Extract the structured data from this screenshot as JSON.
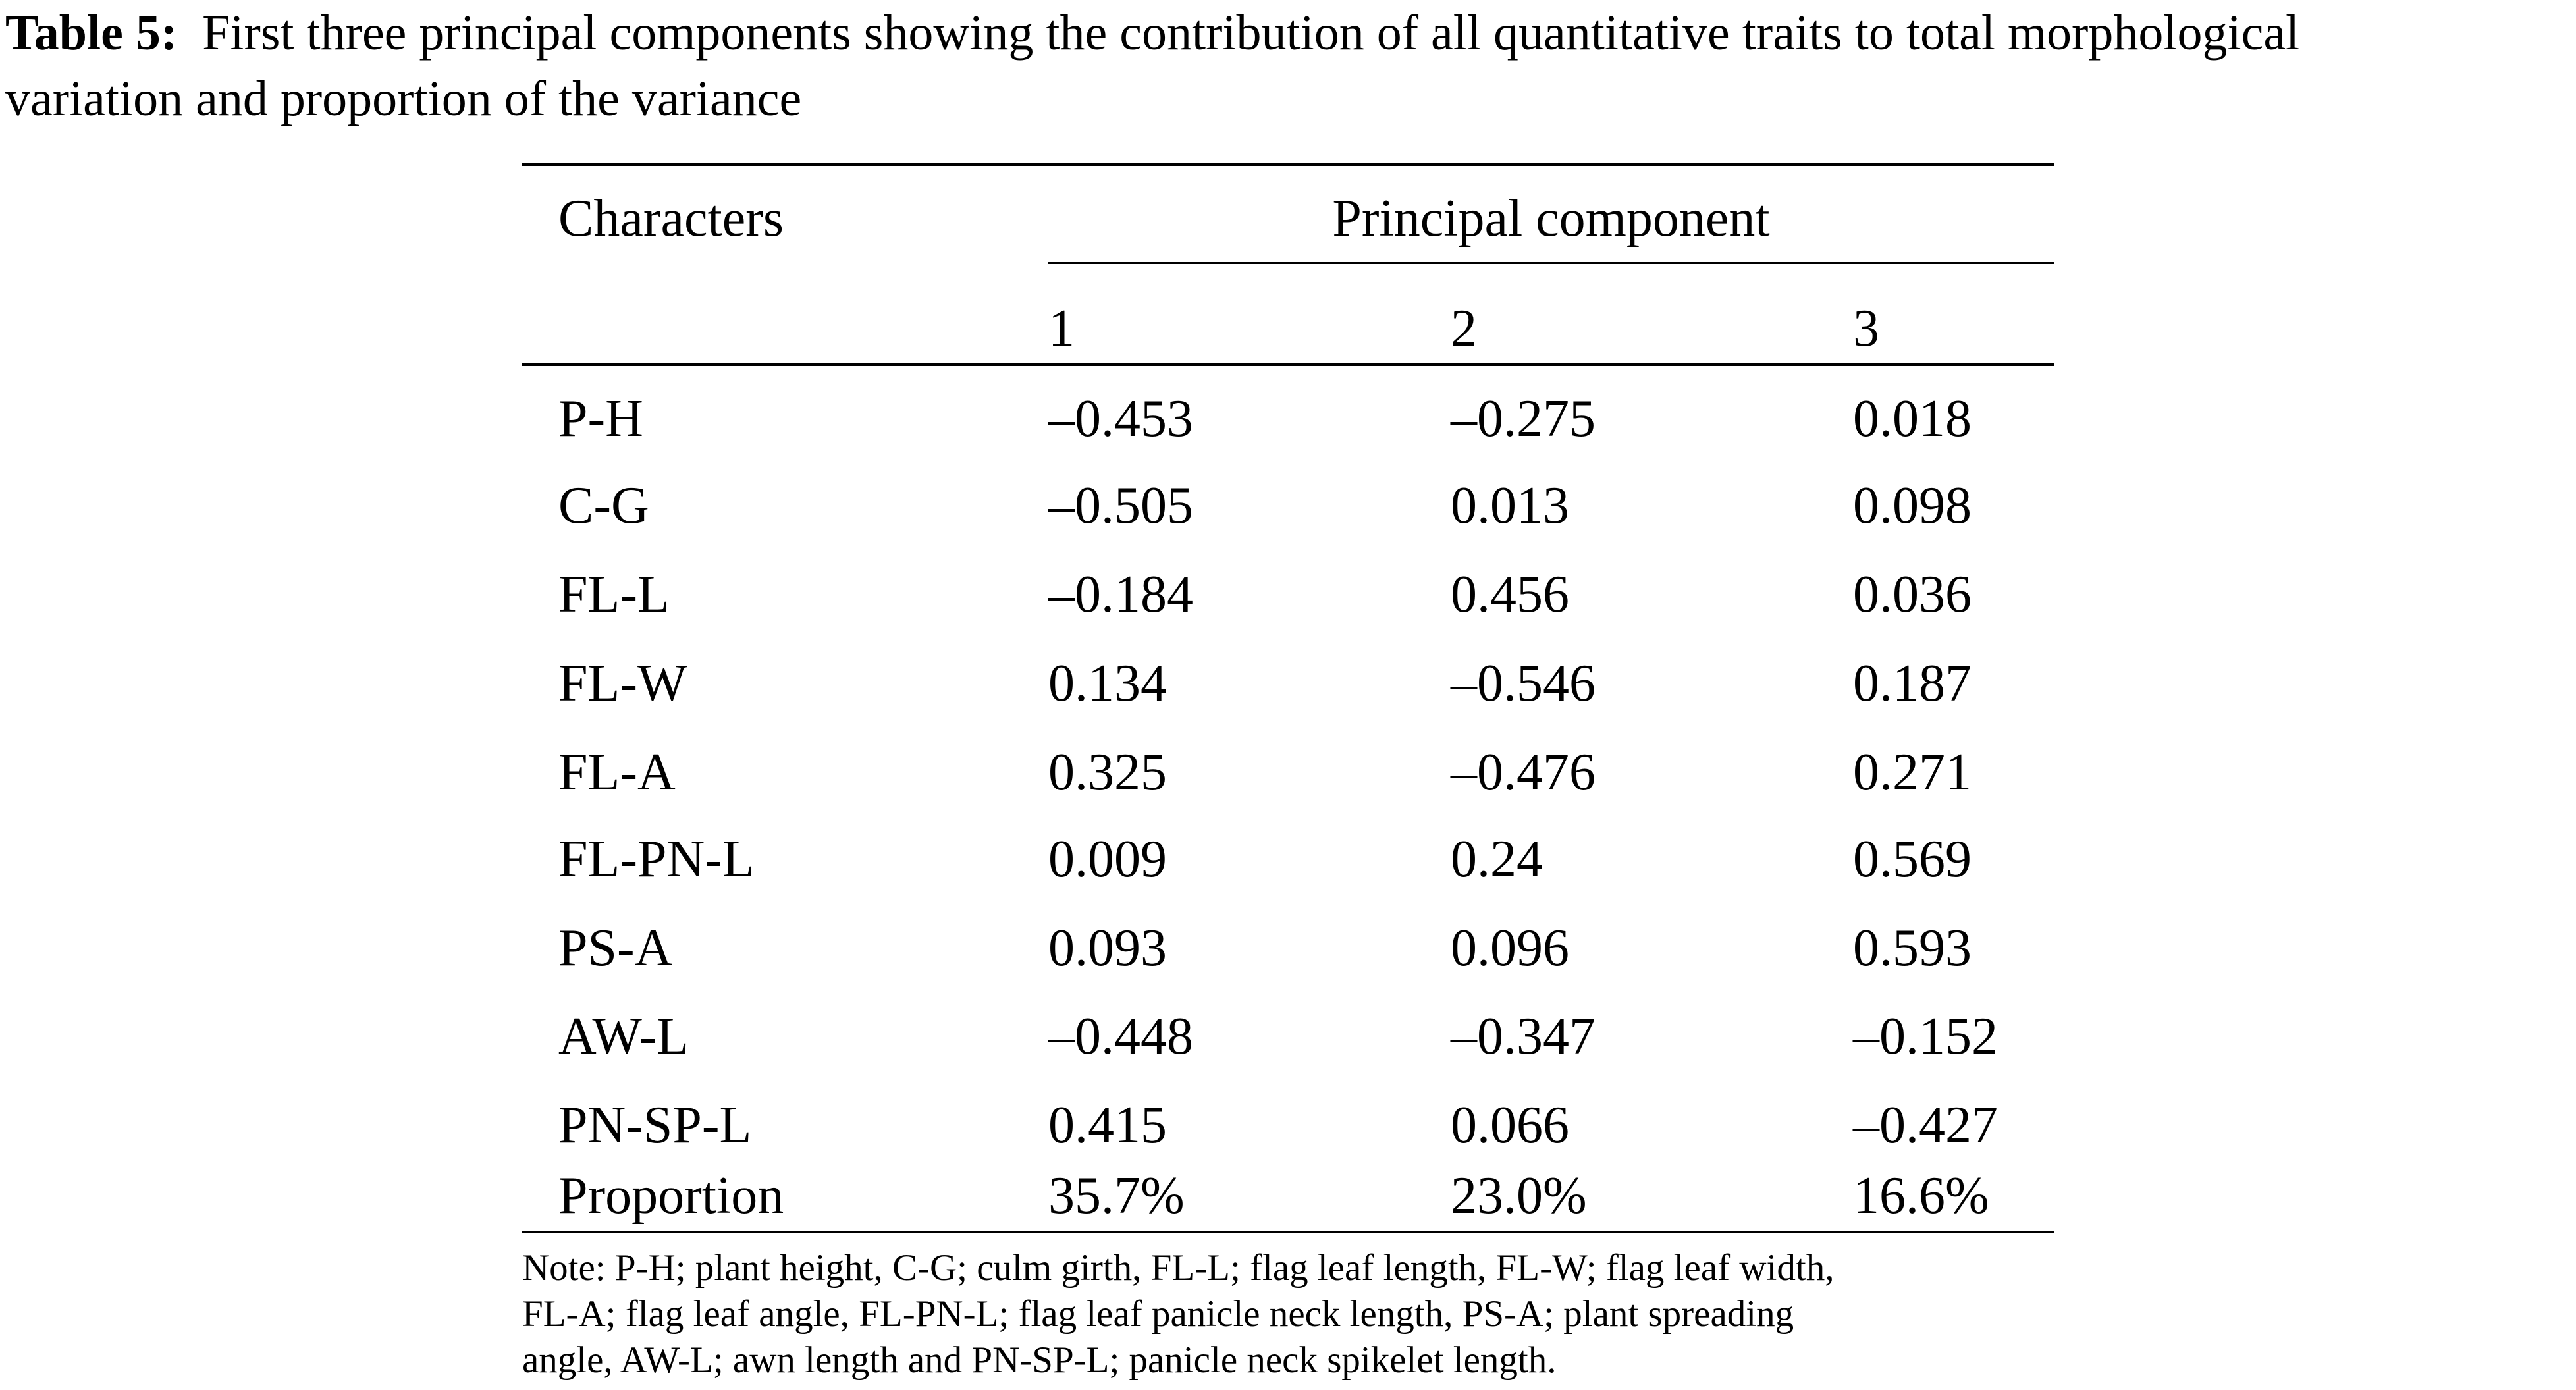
{
  "caption": {
    "label": "Table 5:",
    "text_line1": "First three principal components showing the contribution of all quantitative traits to total morphological",
    "text_line2": "variation and proportion of the variance"
  },
  "table": {
    "row_header": "Characters",
    "group_header": "Principal component",
    "columns": [
      "1",
      "2",
      "3"
    ],
    "rows": [
      {
        "label": "P-H",
        "values": [
          "–0.453",
          "–0.275",
          "0.018"
        ]
      },
      {
        "label": "C-G",
        "values": [
          "–0.505",
          "0.013",
          "0.098"
        ]
      },
      {
        "label": "FL-L",
        "values": [
          "–0.184",
          "0.456",
          "0.036"
        ]
      },
      {
        "label": "FL-W",
        "values": [
          "0.134",
          "–0.546",
          "0.187"
        ]
      },
      {
        "label": "FL-A",
        "values": [
          "0.325",
          "–0.476",
          "0.271"
        ]
      },
      {
        "label": "FL-PN-L",
        "values": [
          "0.009",
          "0.24",
          "0.569"
        ]
      },
      {
        "label": "PS-A",
        "values": [
          "0.093",
          "0.096",
          "0.593"
        ]
      },
      {
        "label": "AW-L",
        "values": [
          "–0.448",
          "–0.347",
          "–0.152"
        ]
      },
      {
        "label": "PN-SP-L",
        "values": [
          "0.415",
          "0.066",
          "–0.427"
        ]
      }
    ],
    "proportion": {
      "label": "Proportion",
      "values": [
        "35.7%",
        "23.0%",
        "16.6%"
      ]
    }
  },
  "note": {
    "lines": [
      "Note: P-H; plant height, C-G; culm girth, FL-L; flag leaf length, FL-W; flag leaf width,",
      "FL-A; flag leaf angle, FL-PN-L; flag leaf panicle neck length, PS-A; plant spreading",
      "angle, AW-L; awn length and PN-SP-L; panicle neck spikelet length."
    ]
  }
}
